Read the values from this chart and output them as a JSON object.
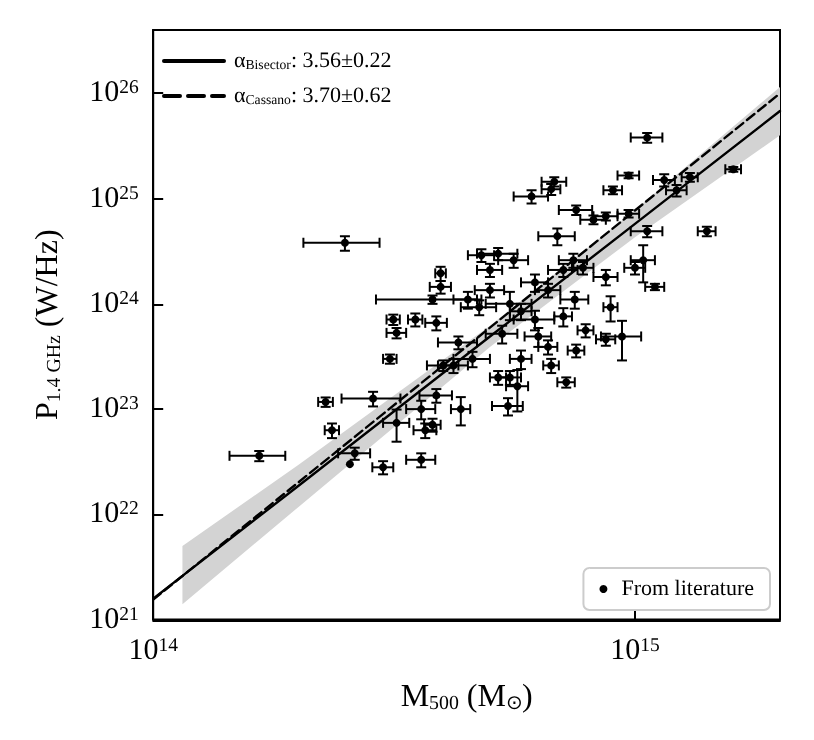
{
  "chart_data": {
    "type": "scatter",
    "xlabel": "M$_{500}$ (M$_{⊙}$)",
    "ylabel": "P$_{1.4 GHz}$ (W/Hz)",
    "log": "xy",
    "xlim": [
      100000000000000.0,
      2000000000000000.0
    ],
    "ylim": [
      1e+21,
      4e+26
    ],
    "xticks": [
      {
        "value": 100000000000000.0,
        "label": "10$^{14}$"
      },
      {
        "value": 1000000000000000.0,
        "label": "10$^{15}$"
      }
    ],
    "yticks": [
      {
        "value": 1e+21,
        "label": "10$^{21}$"
      },
      {
        "value": 1e+22,
        "label": "10$^{22}$"
      },
      {
        "value": 1e+23,
        "label": "10$^{23}$"
      },
      {
        "value": 1e+24,
        "label": "10$^{24}$"
      },
      {
        "value": 1e+25,
        "label": "10$^{25}$"
      },
      {
        "value": 1e+26,
        "label": "10$^{26}$"
      }
    ],
    "grid": false,
    "legend": "top left",
    "series": [
      {
        "type": "line",
        "name": "α$_{Bisector}$: 3.56±0.22",
        "color": "#000000",
        "marker": "none",
        "line_style": "solid",
        "x": [
          100000000000000.0,
          115000000000000.0,
          200000000000000.0,
          500000000000000.0,
          1000000000000000.0,
          2000000000000000.0
        ],
        "values": [
          1.58e+21,
          2.6e+21,
          1.86e+22,
          4.9e+23,
          5.75e+24,
          6.8e+25
        ],
        "lower": [
          null,
          1.4e+21,
          1.17e+22,
          3.9e+23,
          4.3e+24,
          4e+25
        ],
        "upper": [
          null,
          5e+21,
          2.95e+22,
          6.2e+23,
          7.8e+24,
          1.15e+26
        ]
      },
      {
        "type": "line",
        "name": "α$_{Cassano}$: 3.70±0.62",
        "color": "#000000",
        "marker": "none",
        "line_style": "dashed",
        "x": [
          100000000000000.0,
          2000000000000000.0
        ],
        "values": [
          1.55e+21,
          1e+26
        ]
      },
      {
        "name": "From literature",
        "color": "#000000",
        "marker": "circle",
        "x": [
          250000000000000.0,
          166000000000000.0,
          228000000000000.0,
          235000000000000.0,
          256000000000000.0,
          262000000000000.0,
          286000000000000.0,
          300000000000000.0,
          310000000000000.0,
          315000000000000.0,
          320000000000000.0,
          320000000000000.0,
          350000000000000.0,
          360000000000000.0,
          367000000000000.0,
          360000000000000.0,
          380000000000000.0,
          387000000000000.0,
          387000000000000.0,
          395000000000000.0,
          395000000000000.0,
          380000000000000.0,
          435000000000000.0,
          400000000000000.0,
          430000000000000.0,
          460000000000000.0,
          475000000000000.0,
          500000000000000.0,
          500000000000000.0,
          520000000000000.0,
          530000000000000.0,
          520000000000000.0,
          545000000000000.0,
          550000000000000.0,
          560000000000000.0,
          550000000000000.0,
          570000000000000.0,
          580000000000000.0,
          610000000000000.0,
          620000000000000.0,
          620000000000000.0,
          670000000000000.0,
          680000000000000.0,
          660000000000000.0,
          670000000000000.0,
          690000000000000.0,
          710000000000000.0,
          710000000000000.0,
          720000000000000.0,
          755000000000000.0,
          750000000000000.0,
          755000000000000.0,
          745000000000000.0,
          780000000000000.0,
          790000000000000.0,
          820000000000000.0,
          870000000000000.0,
          870000000000000.0,
          870000000000000.0,
          890000000000000.0,
          900000000000000.0,
          940000000000000.0,
          970000000000000.0,
          970000000000000.0,
          1000000000000000.0,
          1040000000000000.0,
          1060000000000000.0,
          1060000000000000.0,
          1100000000000000.0,
          1150000000000000.0,
          1220000000000000.0,
          1300000000000000.0,
          1410000000000000.0,
          1600000000000000.0,
          660000000000000.0,
          630000000000000.0,
          450000000000000.0,
          480000000000000.0,
          580000000000000.0,
          420000000000000.0
        ],
        "values": [
          3.8e+24,
          3.6e+22,
          1.17e+23,
          6.3e+22,
          3e+22,
          3.8e+22,
          1.26e+23,
          2.8e+22,
          3e+23,
          7.1e+23,
          5.3e+23,
          7.4e+22,
          7.1e+23,
          3.3e+22,
          6.3e+22,
          1e+23,
          1.1e+24,
          6.6e+23,
          1.35e+23,
          1.45e+24,
          1.95e+24,
          7.1e+22,
          1e+23,
          2.6e+23,
          4.3e+23,
          3e+23,
          9.3e+23,
          2.1e+24,
          1.35e+24,
          3e+24,
          5.2e+23,
          2e+23,
          1.07e+23,
          1e+24,
          2.6e+24,
          2e+23,
          1.65e+23,
          3e+23,
          1.05e+25,
          1.6e+24,
          7.1e+23,
          1.23e+25,
          1.45e+25,
          3.9e+23,
          2.6e+23,
          4.4e+24,
          2.1e+24,
          7.6e+23,
          1.8e+23,
          7.8e+24,
          1.1e+24,
          3.6e+23,
          2.6e+24,
          2.2e+24,
          5.6e+23,
          6.3e+24,
          6.8e+24,
          1.8e+24,
          4.6e+23,
          9.3e+23,
          1.2e+25,
          4.9e+23,
          1.66e+25,
          7.2e+24,
          2.2e+24,
          2.6e+24,
          3.8e+25,
          4.9e+24,
          1.45e+24,
          1.5e+25,
          1.2e+25,
          1.6e+25,
          4.9e+24,
          1.9e+25,
          1.35e+24,
          4.9e+23,
          1.1e+24,
          2.9e+24,
          8.5e+23,
          2.6e+23
        ],
        "xerrors": [
          45000000000000.0,
          22000000000000.0,
          8000000000000.0,
          8000000000000.0,
          null,
          20000000000000.0,
          40000000000000.0,
          15000000000000.0,
          10000000000000.0,
          10000000000000.0,
          15000000000000.0,
          20000000000000.0,
          12000000000000.0,
          25000000000000.0,
          20000000000000.0,
          25000000000000.0,
          90000000000000.0,
          20000000000000.0,
          30000000000000.0,
          20000000000000.0,
          10000000000000.0,
          15000000000000.0,
          20000000000000.0,
          30000000000000.0,
          40000000000000.0,
          40000000000000.0,
          40000000000000.0,
          30000000000000.0,
          35000000000000.0,
          50000000000000.0,
          40000000000000.0,
          20000000000000.0,
          40000000000000.0,
          60000000000000.0,
          40000000000000.0,
          30000000000000.0,
          30000000000000.0,
          30000000000000.0,
          50000000000000.0,
          40000000000000.0,
          60000000000000.0,
          30000000000000.0,
          40000000000000.0,
          30000000000000.0,
          25000000000000.0,
          60000000000000.0,
          50000000000000.0,
          30000000000000.0,
          30000000000000.0,
          60000000000000.0,
          50000000000000.0,
          30000000000000.0,
          50000000000000.0,
          40000000000000.0,
          30000000000000.0,
          50000000000000.0,
          50000000000000.0,
          50000000000000.0,
          40000000000000.0,
          30000000000000.0,
          40000000000000.0,
          90000000000000.0,
          50000000000000.0,
          50000000000000.0,
          50000000000000.0,
          60000000000000.0,
          80000000000000.0,
          80000000000000.0,
          50000000000000.0,
          60000000000000.0,
          60000000000000.0,
          50000000000000.0,
          60000000000000.0,
          60000000000000.0,
          40000000000000.0,
          40000000000000.0,
          30000000000000.0,
          30000000000000.0,
          30000000000000.0,
          30000000000000.0
        ],
        "errors": [
          6e+23,
          4e+21,
          1.2e+22,
          1e+22,
          null,
          5e+21,
          2e+22,
          4e+21,
          3e+22,
          8e+22,
          6e+22,
          2.5e+22,
          1e+23,
          5e+21,
          1e+22,
          2e+22,
          1e+23,
          1e+23,
          2e+22,
          2e+23,
          3e+23,
          1e+22,
          3e+22,
          3e+22,
          6e+22,
          5e+22,
          1.5e+23,
          3e+23,
          2e+23,
          4e+23,
          1e+23,
          3e+22,
          2e+22,
          3e+23,
          4e+23,
          3e+22,
          7e+22,
          6e+22,
          1.5e+24,
          3e+23,
          1.5e+23,
          1.5e+24,
          1.5e+24,
          6e+22,
          4e+22,
          8e+23,
          3e+23,
          1.5e+23,
          2e+22,
          8e+23,
          2e+23,
          5e+22,
          4e+23,
          3e+23,
          8e+22,
          6e+23,
          6e+23,
          3e+23,
          6e+22,
          2.5e+23,
          1e+24,
          2e+23,
          1e+24,
          6e+23,
          3e+23,
          1e+24,
          4e+24,
          6e+23,
          1e+23,
          2e+24,
          1.5e+24,
          1.5e+24,
          5e+23,
          1e+24,
          2e+23,
          1e+23,
          2e+23,
          4e+23,
          1.5e+23,
          4e+22
        ]
      }
    ]
  }
}
